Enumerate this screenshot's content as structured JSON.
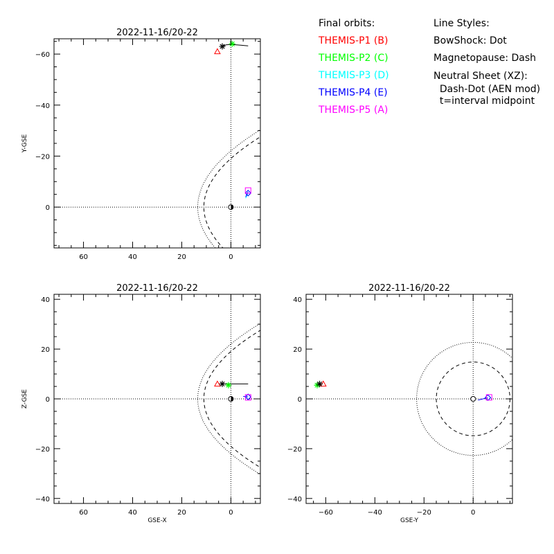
{
  "legend": {
    "orbits_title": "Final orbits:",
    "orbits": [
      {
        "label": "THEMIS-P1 (B)",
        "color": "#ff0000"
      },
      {
        "label": "THEMIS-P2 (C)",
        "color": "#00ff00"
      },
      {
        "label": "THEMIS-P3 (D)",
        "color": "#00ffff"
      },
      {
        "label": "THEMIS-P4 (E)",
        "color": "#0000ff"
      },
      {
        "label": "THEMIS-P5 (A)",
        "color": "#ff00ff"
      }
    ],
    "styles_title": "Line Styles:",
    "styles": [
      "BowShock: Dot",
      "Magnetopause: Dash",
      "Neutral Sheet (XZ):",
      "  Dash-Dot (AEN mod)",
      "  t=interval midpoint"
    ]
  },
  "chart_data": [
    {
      "type": "scatter",
      "title": "2022-11-16/20-22",
      "xlabel": "",
      "ylabel": "Y-GSE",
      "xlim": [
        72,
        -12
      ],
      "ylim": [
        16,
        -66
      ],
      "xticks": [
        60,
        40,
        20,
        0
      ],
      "yticks": [
        -60,
        -40,
        -20,
        0
      ],
      "markers": [
        {
          "probe": "P1",
          "shape": "triangle",
          "color": "#ff0000",
          "x": 5.5,
          "y": -61
        },
        {
          "probe": "P2",
          "shape": "asterisk",
          "color": "#00ff00",
          "x": -0.5,
          "y": -64
        },
        {
          "probe": "P3",
          "shape": "diamond",
          "color": "#00ffff",
          "x": -7,
          "y": -5.5
        },
        {
          "probe": "P4",
          "shape": "diamond",
          "color": "#0000ff",
          "x": -7,
          "y": -5.5
        },
        {
          "probe": "P5",
          "shape": "square",
          "color": "#ff00ff",
          "x": -7,
          "y": -6.5
        },
        {
          "probe": "-",
          "shape": "star",
          "color": "#000000",
          "x": 3.5,
          "y": -63
        }
      ],
      "tracks": [
        {
          "color": "#000000",
          "points": [
            [
              3.5,
              -63
            ],
            [
              2,
              -63.6
            ],
            [
              0,
              -63.8
            ],
            [
              -4,
              -63.5
            ],
            [
              -7,
              -63.2
            ]
          ]
        },
        {
          "color": "#00ffff",
          "points": [
            [
              -6,
              -3.5
            ],
            [
              -6.5,
              -4.5
            ],
            [
              -7,
              -5.5
            ]
          ]
        },
        {
          "color": "#0000ff",
          "points": [
            [
              -6,
              -4
            ],
            [
              -6.5,
              -5
            ],
            [
              -7,
              -6
            ]
          ]
        }
      ]
    },
    {
      "type": "scatter",
      "title": "2022-11-16/20-22",
      "xlabel": "GSE-X",
      "ylabel": "Z-GSE",
      "xlim": [
        72,
        -12
      ],
      "ylim": [
        -42,
        42
      ],
      "xticks": [
        60,
        40,
        20,
        0
      ],
      "yticks": [
        -40,
        -20,
        0,
        20,
        40
      ],
      "markers": [
        {
          "probe": "P1",
          "shape": "triangle",
          "color": "#ff0000",
          "x": 5.5,
          "y": 6
        },
        {
          "probe": "P2",
          "shape": "asterisk",
          "color": "#00ff00",
          "x": 1,
          "y": 5.5
        },
        {
          "probe": "P3",
          "shape": "diamond",
          "color": "#00ffff",
          "x": -7,
          "y": 0.8
        },
        {
          "probe": "P4",
          "shape": "diamond",
          "color": "#0000ff",
          "x": -7,
          "y": 0.8
        },
        {
          "probe": "P5",
          "shape": "square",
          "color": "#ff00ff",
          "x": -7,
          "y": 0.6
        },
        {
          "probe": "-",
          "shape": "star",
          "color": "#000000",
          "x": 3.5,
          "y": 6
        }
      ],
      "tracks": [
        {
          "color": "#000000",
          "points": [
            [
              3.5,
              6
            ],
            [
              -7,
              6
            ]
          ]
        },
        {
          "color": "#0000ff",
          "points": [
            [
              -5,
              1
            ],
            [
              -7,
              0.8
            ]
          ]
        }
      ]
    },
    {
      "type": "scatter",
      "title": "2022-11-16/20-22",
      "xlabel": "GSE-Y",
      "ylabel": "",
      "xlim": [
        -68,
        16
      ],
      "ylim": [
        -42,
        42
      ],
      "xticks": [
        -60,
        -40,
        -20,
        0
      ],
      "yticks": [
        -40,
        -20,
        0,
        20,
        40
      ],
      "markers": [
        {
          "probe": "P1",
          "shape": "triangle",
          "color": "#ff0000",
          "x": -61,
          "y": 6
        },
        {
          "probe": "P2",
          "shape": "asterisk",
          "color": "#00ff00",
          "x": -63.5,
          "y": 5.5
        },
        {
          "probe": "P3",
          "shape": "diamond",
          "color": "#00ffff",
          "x": 6,
          "y": 0.5
        },
        {
          "probe": "P4",
          "shape": "diamond",
          "color": "#0000ff",
          "x": 6,
          "y": 0.5
        },
        {
          "probe": "P5",
          "shape": "square",
          "color": "#ff00ff",
          "x": 6.5,
          "y": 0.6
        },
        {
          "probe": "-",
          "shape": "star",
          "color": "#000000",
          "x": -62.5,
          "y": 6
        }
      ],
      "tracks": [
        {
          "color": "#0000ff",
          "points": [
            [
              2,
              -0.5
            ],
            [
              4,
              0
            ],
            [
              6,
              0.5
            ]
          ]
        }
      ]
    }
  ]
}
